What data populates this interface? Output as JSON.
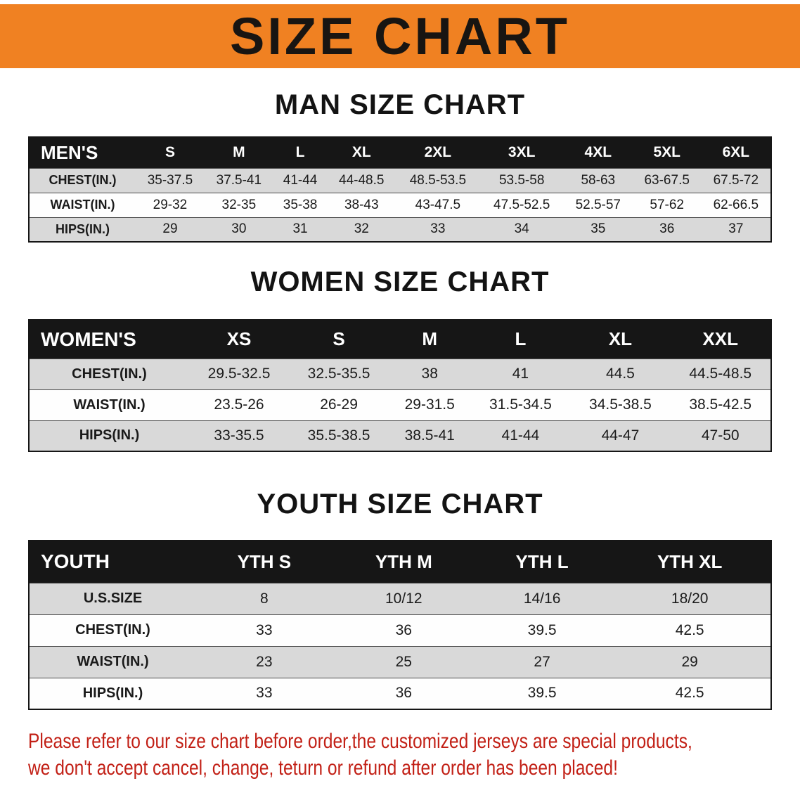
{
  "banner": {
    "title": "SIZE CHART",
    "background_color": "#f08122",
    "text_color": "#181512"
  },
  "sections": [
    {
      "id": "men",
      "heading": "MAN SIZE CHART",
      "table": {
        "label": "MEN'S",
        "columns": [
          "S",
          "M",
          "L",
          "XL",
          "2XL",
          "3XL",
          "4XL",
          "5XL",
          "6XL"
        ],
        "rows": [
          {
            "label": "CHEST(IN.)",
            "values": [
              "35-37.5",
              "37.5-41",
              "41-44",
              "44-48.5",
              "48.5-53.5",
              "53.5-58",
              "58-63",
              "63-67.5",
              "67.5-72"
            ]
          },
          {
            "label": "WAIST(IN.)",
            "values": [
              "29-32",
              "32-35",
              "35-38",
              "38-43",
              "43-47.5",
              "47.5-52.5",
              "52.5-57",
              "57-62",
              "62-66.5"
            ]
          },
          {
            "label": "HIPS(IN.)",
            "values": [
              "29",
              "30",
              "31",
              "32",
              "33",
              "34",
              "35",
              "36",
              "37"
            ]
          }
        ]
      }
    },
    {
      "id": "women",
      "heading": "WOMEN SIZE CHART",
      "table": {
        "label": "WOMEN'S",
        "columns": [
          "XS",
          "S",
          "M",
          "L",
          "XL",
          "XXL"
        ],
        "rows": [
          {
            "label": "CHEST(IN.)",
            "values": [
              "29.5-32.5",
              "32.5-35.5",
              "38",
              "41",
              "44.5",
              "44.5-48.5"
            ]
          },
          {
            "label": "WAIST(IN.)",
            "values": [
              "23.5-26",
              "26-29",
              "29-31.5",
              "31.5-34.5",
              "34.5-38.5",
              "38.5-42.5"
            ]
          },
          {
            "label": "HIPS(IN.)",
            "values": [
              "33-35.5",
              "35.5-38.5",
              "38.5-41",
              "41-44",
              "44-47",
              "47-50"
            ]
          }
        ]
      }
    },
    {
      "id": "youth",
      "heading": "YOUTH SIZE CHART",
      "table": {
        "label": "YOUTH",
        "columns": [
          "YTH S",
          "YTH M",
          "YTH L",
          "YTH XL"
        ],
        "rows": [
          {
            "label": "U.S.SIZE",
            "values": [
              "8",
              "10/12",
              "14/16",
              "18/20"
            ]
          },
          {
            "label": "CHEST(IN.)",
            "values": [
              "33",
              "36",
              "39.5",
              "42.5"
            ]
          },
          {
            "label": "WAIST(IN.)",
            "values": [
              "23",
              "25",
              "27",
              "29"
            ]
          },
          {
            "label": "HIPS(IN.)",
            "values": [
              "33",
              "36",
              "39.5",
              "42.5"
            ]
          }
        ]
      }
    }
  ],
  "table_style": {
    "header_bg": "#161616",
    "header_text": "#ffffff",
    "row_alt_bg": "#d9d9d9",
    "row_bg": "#fefefe"
  },
  "disclaimer": {
    "lines": [
      "Please refer to our size chart before order,the customized jerseys are special products,",
      "we don't accept cancel, change, teturn or refund after order has been placed!"
    ],
    "text_color": "#c22016"
  }
}
